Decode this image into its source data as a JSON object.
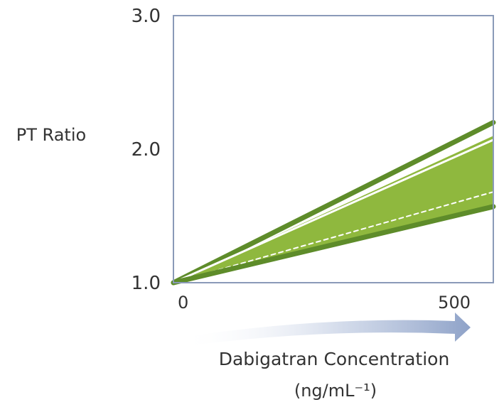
{
  "chart_data": {
    "type": "area",
    "ylabel": "PT Ratio",
    "xlabel_line1": "Dabigatran Concentration",
    "xlabel_line2": "(ng/mL⁻¹)",
    "xlim": [
      0,
      550
    ],
    "ylim": [
      1.0,
      3.0
    ],
    "x_ticks": [
      {
        "value": 0,
        "label": "0"
      },
      {
        "value": 500,
        "label": "500"
      }
    ],
    "y_ticks": [
      {
        "value": 1.0,
        "label": "1.0"
      },
      {
        "value": 2.0,
        "label": "2.0"
      },
      {
        "value": 3.0,
        "label": "3.0"
      }
    ],
    "band": {
      "x": [
        0,
        550
      ],
      "upper": [
        1.0,
        2.1
      ],
      "lower": [
        1.0,
        1.55
      ]
    },
    "series": [
      {
        "x": [
          0,
          550
        ],
        "y": [
          1.0,
          2.2
        ],
        "style": "solid"
      },
      {
        "x": [
          0,
          550
        ],
        "y": [
          1.0,
          2.07
        ],
        "style": "solid"
      },
      {
        "x": [
          0,
          550
        ],
        "y": [
          1.0,
          1.68
        ],
        "style": "dashed"
      },
      {
        "x": [
          0,
          550
        ],
        "y": [
          1.0,
          1.57
        ],
        "style": "solid"
      }
    ],
    "grid": false,
    "legend": "none",
    "colors": {
      "band_fill": "#8fb83e",
      "line_dark": "#5e8c2a",
      "line_white": "#ffffff",
      "axis": "#8a9ab8",
      "arrow": "#a9b7d0",
      "text": "#333333"
    }
  }
}
